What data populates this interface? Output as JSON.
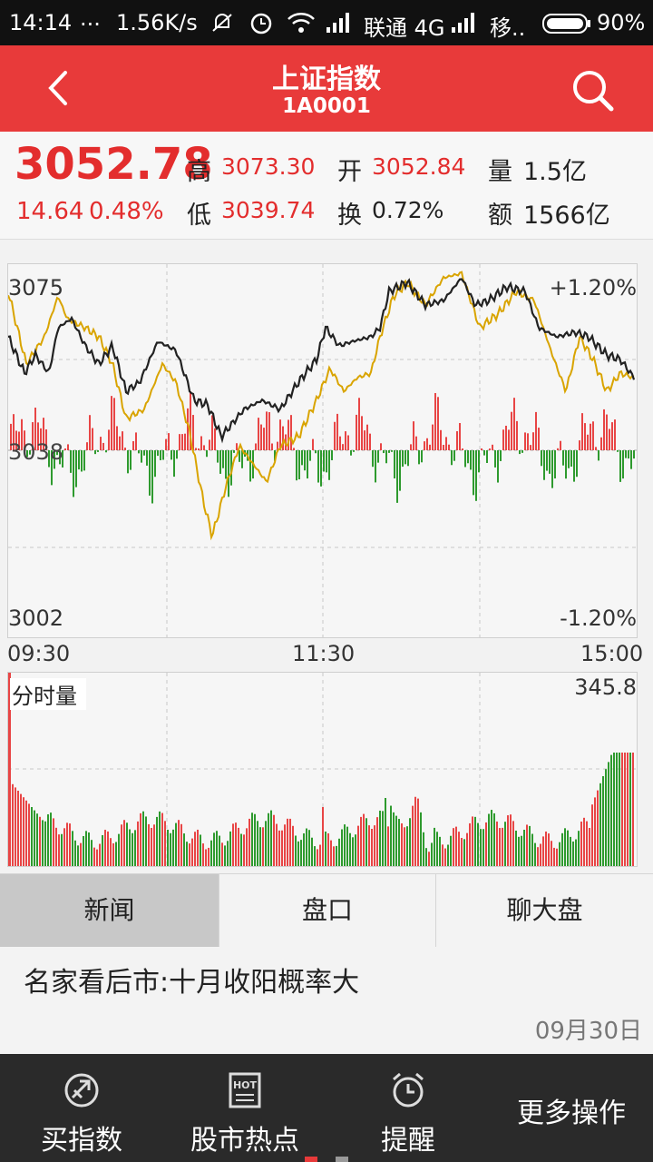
{
  "status_bar": {
    "time": "14:14",
    "dots": "...",
    "speed": "1.56K/s",
    "carrier": "联通 4G",
    "carrier2": "移..",
    "battery": "90%"
  },
  "header": {
    "title": "上证指数",
    "code": "1A0001",
    "icons": [
      "back-arrow-icon",
      "search-icon"
    ]
  },
  "quote": {
    "price": "3052.78",
    "change": "14.64",
    "change_pct": "0.48%",
    "high_label": "高",
    "high": "3073.30",
    "low_label": "低",
    "low": "3039.74",
    "open_label": "开",
    "open": "3052.84",
    "turnover_label": "换",
    "turnover": "0.72%",
    "volume_label": "量",
    "volume": "1.5亿",
    "amount_label": "额",
    "amount": "1566亿"
  },
  "intraday_chart": {
    "y_top": "3075",
    "y_mid": "3038",
    "y_bottom": "3002",
    "pct_top": "+1.20%",
    "pct_bottom": "-1.20%",
    "x_start": "09:30",
    "x_mid": "11:30",
    "x_end": "15:00",
    "colors": {
      "price_line": "#222222",
      "avg_line": "#d9a400",
      "up": "#e84545",
      "down": "#2e9a2e"
    }
  },
  "volume_chart": {
    "label": "分时量",
    "max": "345.8"
  },
  "tabs": [
    {
      "label": "新闻",
      "active": true
    },
    {
      "label": "盘口",
      "active": false
    },
    {
      "label": "聊大盘",
      "active": false
    }
  ],
  "news": {
    "headline": "名家看后市:十月收阳概率大",
    "date": "09月30日"
  },
  "bottom_bar": {
    "items": [
      {
        "label": "买指数",
        "icon": "buy-index-icon"
      },
      {
        "label": "股市热点",
        "icon": "hot-news-icon"
      },
      {
        "label": "提醒",
        "icon": "alarm-clock-icon"
      },
      {
        "label": "更多操作",
        "icon": ""
      }
    ]
  }
}
